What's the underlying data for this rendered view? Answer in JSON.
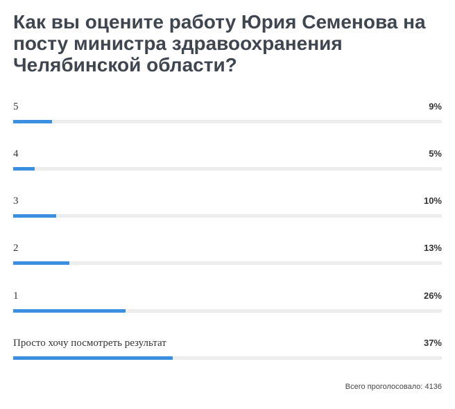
{
  "poll": {
    "question": "Как вы оцените работу Юрия Семенова на посту министра здравоохранения Челябинской области?",
    "options": [
      {
        "label": "5",
        "percent_text": "9%",
        "percent": 9
      },
      {
        "label": "4",
        "percent_text": "5%",
        "percent": 5
      },
      {
        "label": "3",
        "percent_text": "10%",
        "percent": 10
      },
      {
        "label": "2",
        "percent_text": "13%",
        "percent": 13
      },
      {
        "label": "1",
        "percent_text": "26%",
        "percent": 26
      },
      {
        "label": "Просто хочу посмотреть результат",
        "percent_text": "37%",
        "percent": 37
      }
    ],
    "total_votes_text": "Всего проголосовало: 4136"
  },
  "colors": {
    "bar_fill": "#3b8fe0",
    "bar_track": "#ededed",
    "title": "#40464f"
  }
}
